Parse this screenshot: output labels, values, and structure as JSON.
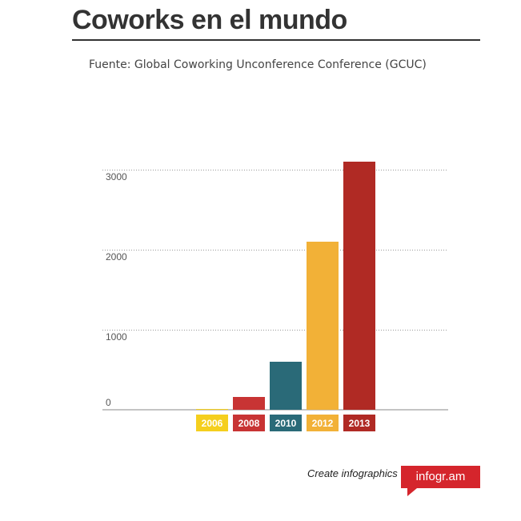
{
  "header": {
    "title": "Coworks en el mundo",
    "source": "Fuente: Global Coworking Unconference Conference (GCUC)"
  },
  "footer": {
    "credit_text": "Create infographics",
    "brand_text": "infogr.am",
    "brand_color": "#d5252c"
  },
  "chart_data": {
    "type": "bar",
    "title": "Coworks en el mundo",
    "subtitle": "Fuente: Global Coworking Unconference Conference (GCUC)",
    "xlabel": "",
    "ylabel": "",
    "categories": [
      "2006",
      "2008",
      "2010",
      "2012",
      "2013"
    ],
    "values": [
      10,
      160,
      600,
      2100,
      3100
    ],
    "colors": [
      "#f5cf1e",
      "#c83434",
      "#2a6a78",
      "#f2b137",
      "#b02a24"
    ],
    "ylim": [
      0,
      3000
    ],
    "yticks": [
      0,
      1000,
      2000,
      3000
    ],
    "grid": true,
    "legend": "none"
  }
}
